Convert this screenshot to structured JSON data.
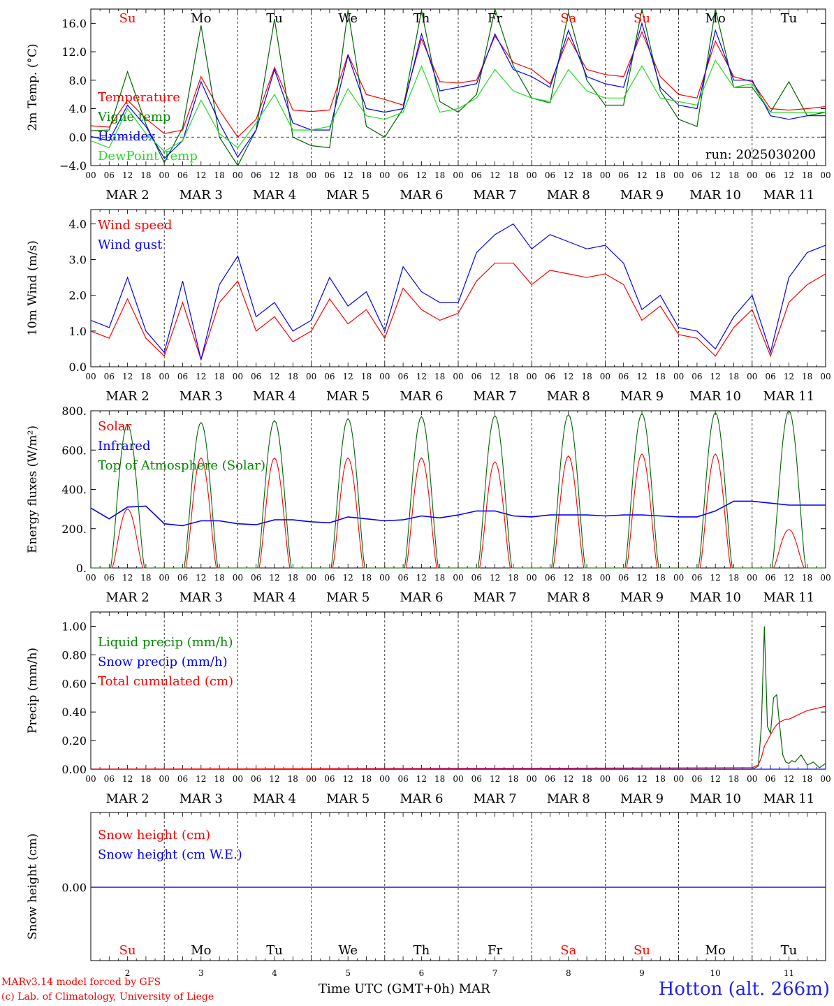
{
  "colors": {
    "red": "#ff0000",
    "blue": "#0000ff",
    "green": "#008800",
    "lightgreen": "#22dd22",
    "black": "#000000",
    "darkgreen": "#006600"
  },
  "days": {
    "weekday_labels": [
      "Su",
      "Mo",
      "Tu",
      "We",
      "Th",
      "Fr",
      "Sa",
      "Su",
      "Mo",
      "Tu"
    ],
    "weekend_flags": [
      true,
      false,
      false,
      false,
      false,
      false,
      true,
      true,
      false,
      false
    ],
    "date_labels": [
      "MAR 2",
      "MAR 3",
      "MAR 4",
      "MAR 5",
      "MAR 6",
      "MAR 7",
      "MAR 8",
      "MAR 9",
      "MAR 10",
      "MAR 11"
    ],
    "day_numbers": [
      "2",
      "3",
      "4",
      "5",
      "6",
      "7",
      "8",
      "9",
      "10",
      "11"
    ],
    "hour_ticks": [
      "00",
      "06",
      "12",
      "18"
    ],
    "final_tick": "00"
  },
  "footer": {
    "credit_line1": "MARv3.14 model forced by GFS",
    "credit_line2": "(c) Lab. of Climatology, University of Liege",
    "x_caption": "Time UTC (GMT+0h) MAR",
    "station": "Hotton (alt. 266m)"
  },
  "chart_data": [
    {
      "type": "line",
      "ylabel": "2m Temp. (°C)",
      "ylim": [
        -4,
        18
      ],
      "yticks": [
        -4,
        0,
        4,
        8,
        12,
        16
      ],
      "ytick_labels": [
        "−4.0",
        "0.0",
        "4.0",
        "8.0",
        "12.0",
        "16.0"
      ],
      "zero_line": true,
      "annotation": "run: 2025030200",
      "legend": [
        {
          "name": "Temperature",
          "color": "red"
        },
        {
          "name": "Vigne temp",
          "color": "green"
        },
        {
          "name": "Humidex",
          "color": "blue"
        },
        {
          "name": "DewPoint Temp",
          "color": "lightgreen"
        }
      ],
      "x_hours_since_mar2_00": [
        0,
        6,
        12,
        18,
        24,
        30,
        36,
        42,
        48,
        54,
        60,
        66,
        72,
        78,
        84,
        90,
        96,
        102,
        108,
        114,
        120,
        126,
        132,
        138,
        144,
        150,
        156,
        162,
        168,
        174,
        180,
        186,
        192,
        198,
        204,
        210,
        216,
        222,
        228,
        234,
        240
      ],
      "series": [
        {
          "name": "Temperature",
          "values": [
            1.6,
            1.4,
            5.2,
            2.6,
            0.5,
            1.0,
            8.5,
            3.8,
            0.0,
            2.5,
            9.8,
            3.8,
            3.6,
            3.8,
            11.6,
            6.0,
            5.3,
            4.5,
            13.8,
            7.8,
            7.6,
            8.0,
            14.2,
            10.5,
            9.5,
            7.5,
            14.0,
            9.5,
            8.8,
            8.5,
            14.8,
            8.5,
            6.0,
            5.5,
            13.5,
            8.5,
            7.8,
            4.0,
            3.8,
            4.0,
            4.3
          ]
        },
        {
          "name": "Vigne temp",
          "values": [
            0.9,
            1.0,
            9.2,
            1.8,
            -3.6,
            1.3,
            15.7,
            0.0,
            -4.0,
            1.0,
            16.6,
            0.0,
            -1.2,
            -1.5,
            17.8,
            1.5,
            0.0,
            4.0,
            17.8,
            5.0,
            3.5,
            6.0,
            18.0,
            10.0,
            5.5,
            4.8,
            17.5,
            8.0,
            4.5,
            4.5,
            18.5,
            6.5,
            2.5,
            1.5,
            18.0,
            7.0,
            7.0,
            3.5,
            7.8,
            3.0,
            3.5
          ]
        },
        {
          "name": "Humidex",
          "values": [
            0.1,
            -0.5,
            4.5,
            1.5,
            -3.0,
            -0.5,
            7.8,
            2.0,
            -2.8,
            1.0,
            9.5,
            2.0,
            1.0,
            1.0,
            11.5,
            4.0,
            3.5,
            4.0,
            14.5,
            6.5,
            7.0,
            7.5,
            14.5,
            9.5,
            8.5,
            7.0,
            15.0,
            8.5,
            7.5,
            7.0,
            16.0,
            7.0,
            4.5,
            4.0,
            15.0,
            8.0,
            8.0,
            3.0,
            2.5,
            3.0,
            3.0
          ]
        },
        {
          "name": "DewPoint Temp",
          "values": [
            -0.5,
            -1.5,
            4.0,
            0.5,
            -2.0,
            -0.5,
            5.2,
            0.5,
            -1.5,
            2.0,
            6.0,
            1.0,
            1.0,
            1.5,
            6.8,
            3.0,
            2.5,
            3.5,
            10.0,
            3.5,
            4.0,
            5.5,
            9.5,
            6.5,
            5.5,
            5.0,
            9.5,
            6.5,
            5.5,
            5.5,
            10.0,
            5.5,
            5.0,
            4.5,
            10.8,
            7.0,
            7.5,
            3.5,
            3.5,
            3.5,
            3.5
          ]
        }
      ]
    },
    {
      "type": "line",
      "ylabel": "10m Wind (m/s)",
      "ylim": [
        0,
        4.4
      ],
      "yticks": [
        0,
        1,
        2,
        3,
        4
      ],
      "ytick_labels": [
        "0.0",
        "1.0",
        "2.0",
        "3.0",
        "4.0"
      ],
      "legend": [
        {
          "name": "Wind speed",
          "color": "red"
        },
        {
          "name": "Wind gust",
          "color": "blue"
        }
      ],
      "x_hours_since_mar2_00": [
        0,
        6,
        12,
        18,
        24,
        30,
        36,
        42,
        48,
        54,
        60,
        66,
        72,
        78,
        84,
        90,
        96,
        102,
        108,
        114,
        120,
        126,
        132,
        138,
        144,
        150,
        156,
        162,
        168,
        174,
        180,
        186,
        192,
        198,
        204,
        210,
        216,
        222,
        228,
        234,
        240
      ],
      "series": [
        {
          "name": "Wind speed",
          "values": [
            1.0,
            0.8,
            1.9,
            0.8,
            0.3,
            1.8,
            0.2,
            1.8,
            2.4,
            1.0,
            1.4,
            0.7,
            1.0,
            1.9,
            1.2,
            1.6,
            0.8,
            2.2,
            1.6,
            1.3,
            1.5,
            2.4,
            2.9,
            2.9,
            2.3,
            2.7,
            2.6,
            2.5,
            2.6,
            2.3,
            1.3,
            1.7,
            0.9,
            0.8,
            0.3,
            1.1,
            1.6,
            0.3,
            1.8,
            2.3,
            2.6
          ]
        },
        {
          "name": "Wind gust",
          "values": [
            1.3,
            1.1,
            2.5,
            1.0,
            0.4,
            2.4,
            0.2,
            2.3,
            3.1,
            1.4,
            1.8,
            1.0,
            1.3,
            2.5,
            1.7,
            2.1,
            1.0,
            2.8,
            2.1,
            1.8,
            1.8,
            3.2,
            3.7,
            4.0,
            3.3,
            3.7,
            3.5,
            3.3,
            3.4,
            2.9,
            1.6,
            2.0,
            1.1,
            1.0,
            0.5,
            1.4,
            2.0,
            0.4,
            2.5,
            3.2,
            3.4
          ]
        }
      ]
    },
    {
      "type": "line",
      "ylabel": "Energy fluxes (W/m²)",
      "ylim": [
        0,
        800
      ],
      "yticks": [
        0,
        200,
        400,
        600,
        800
      ],
      "ytick_labels": [
        "0.",
        "200.",
        "400.",
        "600.",
        "800."
      ],
      "legend": [
        {
          "name": "Solar",
          "color": "red"
        },
        {
          "name": "Infrared",
          "color": "blue"
        },
        {
          "name": "Top of Atmosphere (Solar)",
          "color": "green"
        }
      ],
      "series": [
        {
          "name": "Solar",
          "daily_peak_hour_utc": 12,
          "daylight_hours_utc": [
            7,
            17
          ],
          "daily_peaks": [
            300,
            560,
            560,
            560,
            560,
            540,
            570,
            580,
            580,
            195
          ]
        },
        {
          "name": "Infrared",
          "x_hours_since_mar2_00": [
            0,
            6,
            12,
            18,
            24,
            30,
            36,
            42,
            48,
            54,
            60,
            66,
            72,
            78,
            84,
            90,
            96,
            102,
            108,
            114,
            120,
            126,
            132,
            138,
            144,
            150,
            156,
            162,
            168,
            174,
            180,
            186,
            192,
            198,
            204,
            210,
            216,
            222,
            228,
            234,
            240
          ],
          "values": [
            305,
            250,
            310,
            315,
            225,
            215,
            240,
            240,
            225,
            220,
            245,
            245,
            235,
            230,
            260,
            250,
            240,
            245,
            265,
            255,
            270,
            290,
            290,
            265,
            260,
            270,
            270,
            270,
            265,
            270,
            270,
            265,
            260,
            260,
            290,
            340,
            340,
            330,
            320,
            320,
            320
          ]
        },
        {
          "name": "Top of Atmosphere (Solar)",
          "daily_peak_hour_utc": 12,
          "daylight_hours_utc": [
            6.5,
            17.5
          ],
          "daily_peaks": [
            730,
            740,
            750,
            760,
            770,
            775,
            780,
            785,
            790,
            800
          ]
        }
      ]
    },
    {
      "type": "line",
      "ylabel": "Precip (mm/h)",
      "ylim": [
        0,
        1.1
      ],
      "yticks": [
        0,
        0.2,
        0.4,
        0.6,
        0.8,
        1.0
      ],
      "ytick_labels": [
        "0.00",
        "0.20",
        "0.40",
        "0.60",
        "0.80",
        "1.00"
      ],
      "legend": [
        {
          "name": "Liquid precip (mm/h)",
          "color": "green"
        },
        {
          "name": "Snow precip (mm/h)",
          "color": "blue"
        },
        {
          "name": "Total cumulated (cm)",
          "color": "red"
        }
      ],
      "x_hours_since_mar2_00": [
        0,
        216,
        218,
        219,
        220,
        221,
        222,
        223,
        224,
        225,
        226,
        227,
        228,
        229,
        230,
        232,
        234,
        236,
        238,
        240
      ],
      "series": [
        {
          "name": "Liquid precip (mm/h)",
          "values": [
            0,
            0,
            0.02,
            0.3,
            1.0,
            0.3,
            0.25,
            0.5,
            0.52,
            0.3,
            0.1,
            0.05,
            0.04,
            0.06,
            0.05,
            0.1,
            0.03,
            0.05,
            0.01,
            0.04
          ]
        },
        {
          "name": "Snow precip (mm/h)",
          "values": [
            0,
            0,
            0,
            0,
            0,
            0,
            0,
            0,
            0,
            0,
            0,
            0,
            0,
            0,
            0,
            0,
            0,
            0,
            0,
            0
          ]
        },
        {
          "name": "Total cumulated (cm)",
          "values": [
            0,
            0.01,
            0.03,
            0.08,
            0.16,
            0.2,
            0.24,
            0.28,
            0.31,
            0.33,
            0.34,
            0.35,
            0.35,
            0.36,
            0.37,
            0.39,
            0.41,
            0.42,
            0.43,
            0.44
          ]
        }
      ]
    },
    {
      "type": "line",
      "ylabel": "Snow height (cm)",
      "ytick_labels": [
        "0.00"
      ],
      "legend": [
        {
          "name": "Snow height (cm)",
          "color": "red"
        },
        {
          "name": "Snow height (cm W.E.)",
          "color": "blue"
        }
      ],
      "x_hours_since_mar2_00": [
        0,
        240
      ],
      "series": [
        {
          "name": "Snow height (cm)",
          "values": [
            0,
            0
          ]
        },
        {
          "name": "Snow height (cm W.E.)",
          "values": [
            0,
            0
          ]
        }
      ]
    }
  ]
}
